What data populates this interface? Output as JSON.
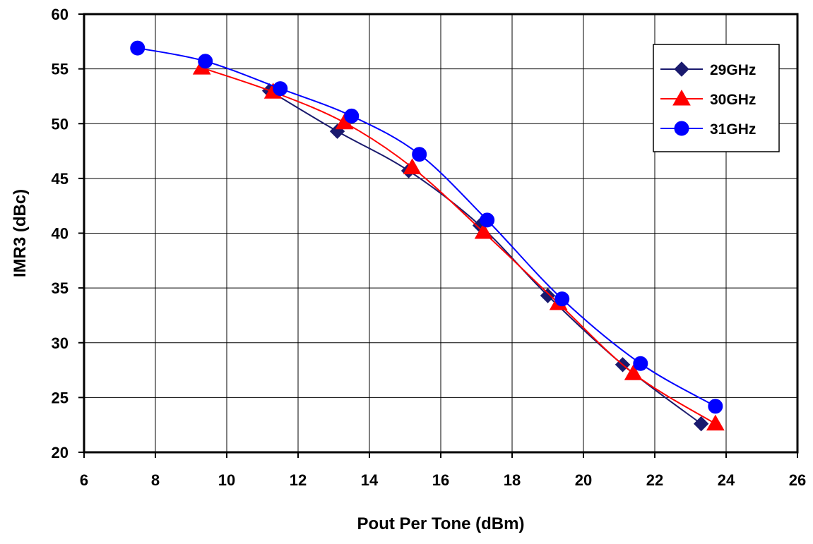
{
  "chart_data": {
    "type": "line",
    "title": "",
    "xlabel": "Pout Per Tone (dBm)",
    "ylabel": "IMR3 (dBc)",
    "xlim": [
      6,
      26
    ],
    "ylim": [
      20,
      60
    ],
    "xticks": [
      6,
      8,
      10,
      12,
      14,
      16,
      18,
      20,
      22,
      24,
      26
    ],
    "yticks": [
      20,
      25,
      30,
      35,
      40,
      45,
      50,
      55,
      60
    ],
    "grid": true,
    "legend_position": "top-right",
    "series": [
      {
        "name": "29GHz",
        "color": "#1a1a6e",
        "marker": "diamond",
        "points": [
          {
            "x": 11.2,
            "y": 53.0
          },
          {
            "x": 13.1,
            "y": 49.3
          },
          {
            "x": 15.1,
            "y": 45.7
          },
          {
            "x": 17.1,
            "y": 40.7
          },
          {
            "x": 19.0,
            "y": 34.3
          },
          {
            "x": 21.1,
            "y": 28.0
          },
          {
            "x": 23.3,
            "y": 22.6
          }
        ]
      },
      {
        "name": "30GHz",
        "color": "#ff0000",
        "marker": "triangle",
        "points": [
          {
            "x": 9.3,
            "y": 55.1
          },
          {
            "x": 11.3,
            "y": 52.9
          },
          {
            "x": 13.3,
            "y": 50.1
          },
          {
            "x": 15.2,
            "y": 46.0
          },
          {
            "x": 17.2,
            "y": 40.1
          },
          {
            "x": 19.3,
            "y": 33.6
          },
          {
            "x": 21.4,
            "y": 27.2
          },
          {
            "x": 23.7,
            "y": 22.6
          }
        ]
      },
      {
        "name": "31GHz",
        "color": "#0000ff",
        "marker": "circle",
        "points": [
          {
            "x": 7.5,
            "y": 56.9
          },
          {
            "x": 9.4,
            "y": 55.7
          },
          {
            "x": 11.5,
            "y": 53.2
          },
          {
            "x": 13.5,
            "y": 50.7
          },
          {
            "x": 15.4,
            "y": 47.2
          },
          {
            "x": 17.3,
            "y": 41.2
          },
          {
            "x": 19.4,
            "y": 34.0
          },
          {
            "x": 21.6,
            "y": 28.1
          },
          {
            "x": 23.7,
            "y": 24.2
          }
        ]
      }
    ]
  }
}
